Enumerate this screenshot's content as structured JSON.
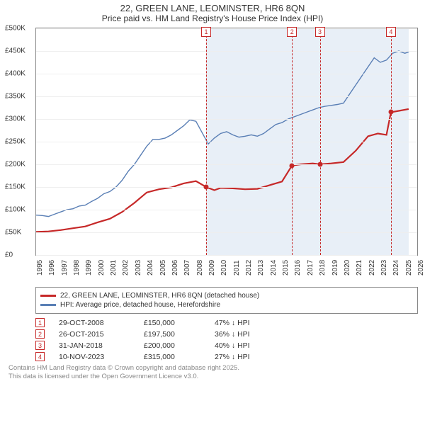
{
  "title": "22, GREEN LANE, LEOMINSTER, HR6 8QN",
  "subtitle": "Price paid vs. HM Land Registry's House Price Index (HPI)",
  "chart": {
    "type": "line",
    "background_color": "#ffffff",
    "plot_border_color": "#888888",
    "grid_color": "#eeeeee",
    "shade_color": "#e8eff7",
    "x_year_min": 1995,
    "x_year_max": 2026,
    "x_ticks": [
      1995,
      1996,
      1997,
      1998,
      1999,
      2000,
      2001,
      2002,
      2003,
      2004,
      2005,
      2006,
      2007,
      2008,
      2009,
      2010,
      2011,
      2012,
      2013,
      2014,
      2015,
      2016,
      2017,
      2018,
      2019,
      2020,
      2021,
      2022,
      2023,
      2024,
      2025,
      2026
    ],
    "x_tick_fontsize": 10,
    "y_min": 0,
    "y_max": 500000,
    "y_ticks": [
      {
        "v": 0,
        "label": "£0"
      },
      {
        "v": 50000,
        "label": "£50K"
      },
      {
        "v": 100000,
        "label": "£100K"
      },
      {
        "v": 150000,
        "label": "£150K"
      },
      {
        "v": 200000,
        "label": "£200K"
      },
      {
        "v": 250000,
        "label": "£250K"
      },
      {
        "v": 300000,
        "label": "£300K"
      },
      {
        "v": 350000,
        "label": "£350K"
      },
      {
        "v": 400000,
        "label": "£400K"
      },
      {
        "v": 450000,
        "label": "£450K"
      },
      {
        "v": 500000,
        "label": "£500K"
      }
    ],
    "y_tick_fontsize": 10,
    "shade_start_year": 2008.83,
    "shade_end_year": 2025.3,
    "series": {
      "hpi": {
        "color": "#5a7fb5",
        "width": 1.4,
        "points": [
          [
            1995.0,
            88000
          ],
          [
            1995.5,
            87000
          ],
          [
            1996.0,
            85000
          ],
          [
            1996.5,
            90000
          ],
          [
            1997.0,
            95000
          ],
          [
            1997.5,
            100000
          ],
          [
            1998.0,
            102000
          ],
          [
            1998.5,
            108000
          ],
          [
            1999.0,
            110000
          ],
          [
            1999.5,
            118000
          ],
          [
            2000.0,
            125000
          ],
          [
            2000.5,
            135000
          ],
          [
            2001.0,
            140000
          ],
          [
            2001.5,
            150000
          ],
          [
            2002.0,
            165000
          ],
          [
            2002.5,
            185000
          ],
          [
            2003.0,
            200000
          ],
          [
            2003.5,
            220000
          ],
          [
            2004.0,
            240000
          ],
          [
            2004.5,
            255000
          ],
          [
            2005.0,
            255000
          ],
          [
            2005.5,
            258000
          ],
          [
            2006.0,
            265000
          ],
          [
            2006.5,
            275000
          ],
          [
            2007.0,
            285000
          ],
          [
            2007.5,
            298000
          ],
          [
            2008.0,
            295000
          ],
          [
            2008.5,
            270000
          ],
          [
            2009.0,
            245000
          ],
          [
            2009.5,
            258000
          ],
          [
            2010.0,
            268000
          ],
          [
            2010.5,
            272000
          ],
          [
            2011.0,
            265000
          ],
          [
            2011.5,
            260000
          ],
          [
            2012.0,
            262000
          ],
          [
            2012.5,
            265000
          ],
          [
            2013.0,
            262000
          ],
          [
            2013.5,
            268000
          ],
          [
            2014.0,
            278000
          ],
          [
            2014.5,
            288000
          ],
          [
            2015.0,
            292000
          ],
          [
            2015.5,
            300000
          ],
          [
            2016.0,
            305000
          ],
          [
            2016.5,
            310000
          ],
          [
            2017.0,
            315000
          ],
          [
            2017.5,
            320000
          ],
          [
            2018.0,
            325000
          ],
          [
            2018.5,
            328000
          ],
          [
            2019.0,
            330000
          ],
          [
            2019.5,
            332000
          ],
          [
            2020.0,
            335000
          ],
          [
            2020.5,
            355000
          ],
          [
            2021.0,
            375000
          ],
          [
            2021.5,
            395000
          ],
          [
            2022.0,
            415000
          ],
          [
            2022.5,
            435000
          ],
          [
            2023.0,
            425000
          ],
          [
            2023.5,
            430000
          ],
          [
            2024.0,
            445000
          ],
          [
            2024.5,
            450000
          ],
          [
            2025.0,
            445000
          ],
          [
            2025.3,
            448000
          ]
        ]
      },
      "property": {
        "color": "#c62828",
        "width": 2.2,
        "points": [
          [
            1995.0,
            51000
          ],
          [
            1996.0,
            52000
          ],
          [
            1997.0,
            55000
          ],
          [
            1998.0,
            59000
          ],
          [
            1999.0,
            63000
          ],
          [
            2000.0,
            72000
          ],
          [
            2001.0,
            80000
          ],
          [
            2002.0,
            95000
          ],
          [
            2003.0,
            115000
          ],
          [
            2004.0,
            138000
          ],
          [
            2005.0,
            145000
          ],
          [
            2006.0,
            149000
          ],
          [
            2007.0,
            158000
          ],
          [
            2008.0,
            163000
          ],
          [
            2008.83,
            150000
          ],
          [
            2009.5,
            143000
          ],
          [
            2010.0,
            148000
          ],
          [
            2011.0,
            147000
          ],
          [
            2012.0,
            145000
          ],
          [
            2013.0,
            146000
          ],
          [
            2014.0,
            154000
          ],
          [
            2015.0,
            162000
          ],
          [
            2015.82,
            197500
          ],
          [
            2016.5,
            200000
          ],
          [
            2017.5,
            202000
          ],
          [
            2018.08,
            200000
          ],
          [
            2019.0,
            202000
          ],
          [
            2020.0,
            205000
          ],
          [
            2021.0,
            230000
          ],
          [
            2022.0,
            262000
          ],
          [
            2022.8,
            268000
          ],
          [
            2023.5,
            265000
          ],
          [
            2023.86,
            315000
          ],
          [
            2024.5,
            318000
          ],
          [
            2025.3,
            322000
          ]
        ]
      }
    },
    "sale_dots": [
      {
        "year": 2008.83,
        "value": 150000
      },
      {
        "year": 2015.82,
        "value": 197500
      },
      {
        "year": 2018.08,
        "value": 200000
      },
      {
        "year": 2023.86,
        "value": 315000
      }
    ],
    "markers": [
      {
        "n": "1",
        "year": 2008.83
      },
      {
        "n": "2",
        "year": 2015.82
      },
      {
        "n": "3",
        "year": 2018.08
      },
      {
        "n": "4",
        "year": 2023.86
      }
    ]
  },
  "legend": {
    "property": "22, GREEN LANE, LEOMINSTER, HR6 8QN (detached house)",
    "hpi": "HPI: Average price, detached house, Herefordshire"
  },
  "sales": [
    {
      "n": "1",
      "date": "29-OCT-2008",
      "price": "£150,000",
      "pct": "47% ↓ HPI"
    },
    {
      "n": "2",
      "date": "26-OCT-2015",
      "price": "£197,500",
      "pct": "36% ↓ HPI"
    },
    {
      "n": "3",
      "date": "31-JAN-2018",
      "price": "£200,000",
      "pct": "40% ↓ HPI"
    },
    {
      "n": "4",
      "date": "10-NOV-2023",
      "price": "£315,000",
      "pct": "27% ↓ HPI"
    }
  ],
  "attribution_line1": "Contains HM Land Registry data © Crown copyright and database right 2025.",
  "attribution_line2": "This data is licensed under the Open Government Licence v3.0."
}
